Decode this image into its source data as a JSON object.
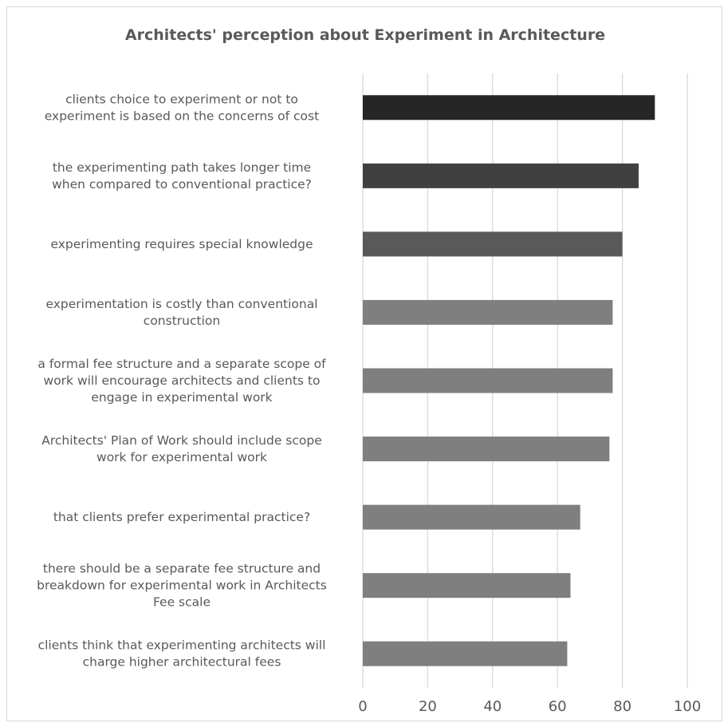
{
  "chart_data": {
    "type": "bar",
    "orientation": "horizontal",
    "title": "Architects' perception about Experiment in Architecture",
    "xlabel": "",
    "ylabel": "",
    "xlim": [
      0,
      100
    ],
    "ticks": [
      "0",
      "20",
      "40",
      "60",
      "80",
      "100"
    ],
    "grid": true,
    "legend": "none",
    "categories": [
      [
        "clients choice to experiment or not to",
        "experiment  is based on the concerns of cost"
      ],
      [
        "the experimenting path takes longer time",
        "when compared to conventional practice?"
      ],
      [
        "experimenting requires special knowledge"
      ],
      [
        "experimentation is costly than conventional",
        "construction"
      ],
      [
        "a formal fee structure and a separate scope of",
        "work  will encourage architects and clients to",
        "engage in experimental work"
      ],
      [
        "Architects' Plan of Work should include scope",
        "work for experimental work"
      ],
      [
        "that clients prefer experimental practice?"
      ],
      [
        "there should be a separate fee structure  and",
        "breakdown for experimental work in Architects",
        "Fee scale"
      ],
      [
        "clients think that experimenting architects will",
        "charge higher architectural fees"
      ]
    ],
    "values": [
      90,
      85,
      80,
      77,
      77,
      76,
      67,
      64,
      63
    ],
    "colors": [
      "#262626",
      "#404040",
      "#595959",
      "#7f7f7f",
      "#7f7f7f",
      "#7f7f7f",
      "#7f7f7f",
      "#7f7f7f",
      "#7f7f7f"
    ]
  }
}
